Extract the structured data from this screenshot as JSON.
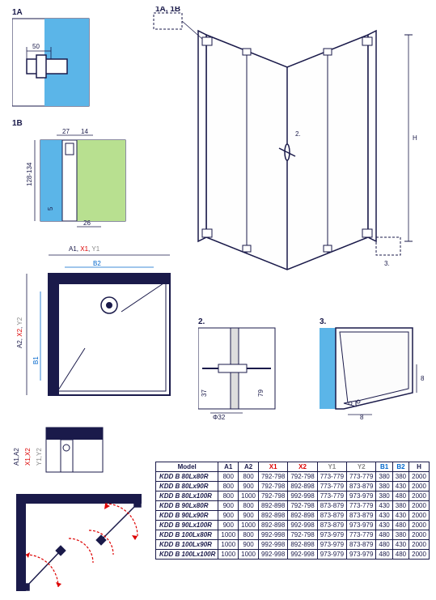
{
  "labels": {
    "d1a": "1A",
    "d1b": "1B",
    "d1a1b": "1A, 1B",
    "d2": "2.",
    "d3": "3.",
    "a1": "A1",
    "a2": "A2",
    "x1": "X1",
    "x2": "X2",
    "y1": "Y1",
    "y2": "Y2",
    "b1": "B1",
    "b2": "B2",
    "h": "H",
    "a1a2": "A1,A2",
    "x1x2": "X1,X2",
    "y1y2": "Y1,Y2",
    "d50": "50",
    "d27": "27",
    "d14": "14",
    "d5": "5",
    "d26": "26",
    "d128": "128-134",
    "d37": "37",
    "d79": "79",
    "d32": "Φ32",
    "d8": "8",
    "model": "Model"
  },
  "colors": {
    "stroke": "#1a1a4a",
    "glass_blue": "#5BB5E8",
    "glass_green": "#B8E090",
    "red": "#d00",
    "blue": "#06c",
    "gray": "#888",
    "light": "#e8f4fa"
  },
  "table": {
    "headers": [
      "Model",
      "A1",
      "A2",
      "X1",
      "X2",
      "Y1",
      "Y2",
      "B1",
      "B2",
      "H"
    ],
    "header_colors": [
      "#1a1a4a",
      "#1a1a4a",
      "#1a1a4a",
      "#d00",
      "#d00",
      "#888",
      "#888",
      "#06c",
      "#06c",
      "#1a1a4a"
    ],
    "rows": [
      [
        "KDD B 80Lx80R",
        "800",
        "800",
        "792-798",
        "792-798",
        "773-779",
        "773-779",
        "380",
        "380",
        "2000"
      ],
      [
        "KDD B 80Lx90R",
        "800",
        "900",
        "792-798",
        "892-898",
        "773-779",
        "873-879",
        "380",
        "430",
        "2000"
      ],
      [
        "KDD B 80Lx100R",
        "800",
        "1000",
        "792-798",
        "992-998",
        "773-779",
        "973-979",
        "380",
        "480",
        "2000"
      ],
      [
        "KDD B 90Lx80R",
        "900",
        "800",
        "892-898",
        "792-798",
        "873-879",
        "773-779",
        "430",
        "380",
        "2000"
      ],
      [
        "KDD B 90Lx90R",
        "900",
        "900",
        "892-898",
        "892-898",
        "873-879",
        "873-879",
        "430",
        "430",
        "2000"
      ],
      [
        "KDD B 90Lx100R",
        "900",
        "1000",
        "892-898",
        "992-998",
        "873-879",
        "973-979",
        "430",
        "480",
        "2000"
      ],
      [
        "KDD B 100Lx80R",
        "1000",
        "800",
        "992-998",
        "792-798",
        "973-979",
        "773-779",
        "480",
        "380",
        "2000"
      ],
      [
        "KDD B 100Lx90R",
        "1000",
        "900",
        "992-998",
        "892-898",
        "973-979",
        "873-879",
        "480",
        "430",
        "2000"
      ],
      [
        "KDD B 100Lx100R",
        "1000",
        "1000",
        "992-998",
        "992-998",
        "973-979",
        "973-979",
        "480",
        "480",
        "2000"
      ]
    ]
  }
}
